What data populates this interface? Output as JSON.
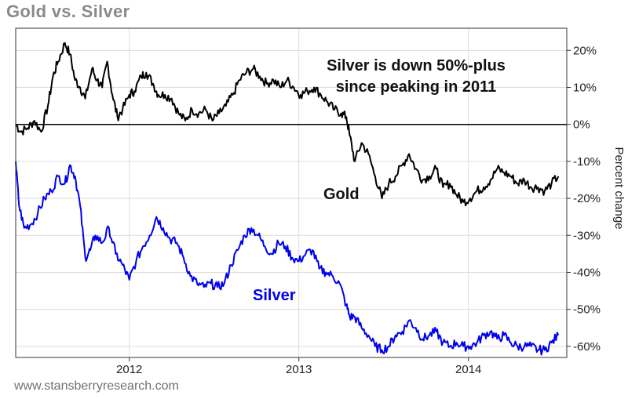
{
  "header": {
    "title": "Gold vs. Silver"
  },
  "footer": {
    "source": "www.stansberryresearch.com"
  },
  "colors": {
    "gold": "#000000",
    "silver": "#0000ee",
    "grid": "#dcdcdc",
    "frame": "#333333"
  },
  "chart_data": {
    "type": "line",
    "title": "Gold vs. Silver",
    "ylabel": "Percent change",
    "xlabel": "",
    "xlim": [
      2011.33,
      2014.58
    ],
    "ylim": [
      -63,
      26
    ],
    "x_ticks": [
      {
        "value": 2012,
        "label": "2012"
      },
      {
        "value": 2013,
        "label": "2013"
      },
      {
        "value": 2014,
        "label": "2014"
      }
    ],
    "y_ticks": [
      {
        "value": 20,
        "label": "20%"
      },
      {
        "value": 10,
        "label": "10%"
      },
      {
        "value": 0,
        "label": "0%"
      },
      {
        "value": -10,
        "label": "-10%"
      },
      {
        "value": -20,
        "label": "-20%"
      },
      {
        "value": -30,
        "label": "-30%"
      },
      {
        "value": -40,
        "label": "-40%"
      },
      {
        "value": -50,
        "label": "-50%"
      },
      {
        "value": -60,
        "label": "-60%"
      }
    ],
    "grid": true,
    "annotations": {
      "headline_line1": "Silver is down 50%-plus",
      "headline_line2": "since peaking in 2011"
    },
    "series": [
      {
        "name": "Gold",
        "color": "#000000",
        "x": [
          2011.33,
          2011.36,
          2011.4,
          2011.44,
          2011.48,
          2011.52,
          2011.55,
          2011.58,
          2011.62,
          2011.65,
          2011.68,
          2011.71,
          2011.74,
          2011.78,
          2011.81,
          2011.84,
          2011.87,
          2011.9,
          2011.93,
          2011.96,
          2012.0,
          2012.03,
          2012.07,
          2012.1,
          2012.14,
          2012.17,
          2012.21,
          2012.25,
          2012.29,
          2012.33,
          2012.37,
          2012.41,
          2012.45,
          2012.49,
          2012.53,
          2012.57,
          2012.61,
          2012.65,
          2012.69,
          2012.73,
          2012.77,
          2012.81,
          2012.85,
          2012.89,
          2012.93,
          2012.97,
          2013.01,
          2013.05,
          2013.09,
          2013.13,
          2013.17,
          2013.21,
          2013.25,
          2013.28,
          2013.3,
          2013.33,
          2013.37,
          2013.41,
          2013.45,
          2013.49,
          2013.53,
          2013.57,
          2013.61,
          2013.65,
          2013.69,
          2013.73,
          2013.77,
          2013.81,
          2013.85,
          2013.89,
          2013.93,
          2013.97,
          2014.01,
          2014.05,
          2014.09,
          2014.13,
          2014.17,
          2014.21,
          2014.25,
          2014.29,
          2014.33,
          2014.37,
          2014.41,
          2014.45,
          2014.49,
          2014.53
        ],
        "values": [
          0,
          -2,
          -1,
          1,
          -2,
          5,
          13,
          17,
          22,
          19,
          12,
          10,
          7,
          15,
          12,
          10,
          17,
          8,
          2,
          4,
          8,
          9,
          13,
          14,
          11,
          8,
          8,
          7,
          3,
          1,
          4,
          3,
          4,
          1,
          3,
          5,
          8,
          12,
          14,
          15,
          13,
          11,
          12,
          10,
          12,
          10,
          8,
          9,
          10,
          8,
          6,
          4,
          3,
          2,
          -3,
          -10,
          -5,
          -8,
          -14,
          -20,
          -16,
          -14,
          -11,
          -8,
          -12,
          -15,
          -14,
          -12,
          -17,
          -16,
          -19,
          -21,
          -20,
          -18,
          -17,
          -15,
          -12,
          -13,
          -14,
          -16,
          -15,
          -17,
          -17,
          -18,
          -16,
          -14
        ]
      },
      {
        "name": "Silver",
        "color": "#0000ee",
        "x": [
          2011.33,
          2011.35,
          2011.38,
          2011.42,
          2011.46,
          2011.5,
          2011.54,
          2011.58,
          2011.62,
          2011.65,
          2011.68,
          2011.71,
          2011.74,
          2011.77,
          2011.8,
          2011.84,
          2011.88,
          2011.92,
          2011.96,
          2012.0,
          2012.04,
          2012.08,
          2012.12,
          2012.16,
          2012.2,
          2012.24,
          2012.28,
          2012.32,
          2012.36,
          2012.4,
          2012.44,
          2012.48,
          2012.52,
          2012.56,
          2012.6,
          2012.64,
          2012.68,
          2012.72,
          2012.76,
          2012.8,
          2012.84,
          2012.88,
          2012.92,
          2012.96,
          2013.0,
          2013.04,
          2013.08,
          2013.12,
          2013.16,
          2013.2,
          2013.24,
          2013.28,
          2013.3,
          2013.33,
          2013.37,
          2013.41,
          2013.45,
          2013.49,
          2013.53,
          2013.57,
          2013.61,
          2013.65,
          2013.69,
          2013.73,
          2013.77,
          2013.81,
          2013.85,
          2013.89,
          2013.93,
          2013.97,
          2014.01,
          2014.05,
          2014.09,
          2014.13,
          2014.17,
          2014.21,
          2014.25,
          2014.29,
          2014.33,
          2014.37,
          2014.41,
          2014.45,
          2014.49,
          2014.53
        ],
        "values": [
          -10,
          -22,
          -28,
          -27,
          -24,
          -20,
          -18,
          -14,
          -16,
          -11,
          -14,
          -22,
          -36,
          -34,
          -30,
          -32,
          -28,
          -35,
          -38,
          -42,
          -37,
          -33,
          -30,
          -25,
          -28,
          -31,
          -32,
          -36,
          -41,
          -43,
          -44,
          -43,
          -44,
          -43,
          -38,
          -34,
          -30,
          -28,
          -30,
          -33,
          -35,
          -32,
          -33,
          -36,
          -37,
          -35,
          -34,
          -39,
          -40,
          -41,
          -43,
          -49,
          -52,
          -52,
          -55,
          -57,
          -60,
          -61,
          -60,
          -57,
          -56,
          -53,
          -55,
          -58,
          -57,
          -56,
          -59,
          -60,
          -59,
          -60,
          -60,
          -59,
          -57,
          -56,
          -58,
          -57,
          -59,
          -60,
          -60,
          -60,
          -61,
          -61,
          -59,
          -57
        ]
      }
    ]
  }
}
